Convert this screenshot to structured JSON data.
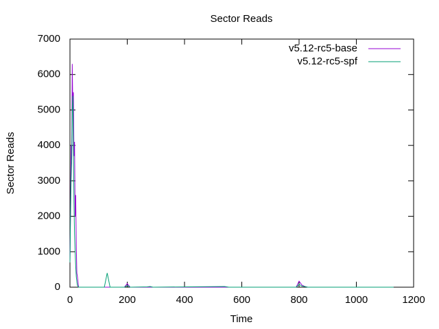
{
  "chart_data": {
    "type": "line",
    "title": "Sector Reads",
    "x_label": "Time",
    "y_label": "Sector Reads",
    "x": [
      0,
      2,
      4,
      6,
      8,
      10,
      12,
      14,
      16,
      18,
      20,
      22,
      24,
      26,
      30,
      120,
      130,
      140,
      190,
      200,
      210,
      270,
      280,
      290,
      540,
      555,
      790,
      800,
      810,
      820,
      830,
      1130
    ],
    "series": [
      {
        "name": "v5.12-rc5-base",
        "color": "#9400d3",
        "values": [
          700,
          2300,
          4000,
          3600,
          6300,
          5000,
          5500,
          3700,
          4100,
          2000,
          2600,
          1200,
          400,
          300,
          0,
          0,
          0,
          0,
          0,
          100,
          0,
          0,
          0,
          0,
          0,
          0,
          0,
          170,
          60,
          20,
          0,
          0
        ]
      },
      {
        "name": "v5.12-rc5-spf",
        "color": "#009e73",
        "values": [
          700,
          2000,
          3000,
          3500,
          5000,
          5400,
          4000,
          2400,
          1500,
          1000,
          600,
          300,
          150,
          50,
          0,
          0,
          400,
          0,
          0,
          50,
          0,
          10,
          20,
          0,
          20,
          0,
          0,
          80,
          30,
          20,
          0,
          0
        ]
      }
    ],
    "xlim": [
      0,
      1200
    ],
    "xticks": [
      0,
      200,
      400,
      600,
      800,
      1000,
      1200
    ],
    "ylim": [
      0,
      7000
    ],
    "yticks": [
      0,
      1000,
      2000,
      3000,
      4000,
      5000,
      6000,
      7000
    ],
    "grid": false,
    "legend": "top-right"
  }
}
